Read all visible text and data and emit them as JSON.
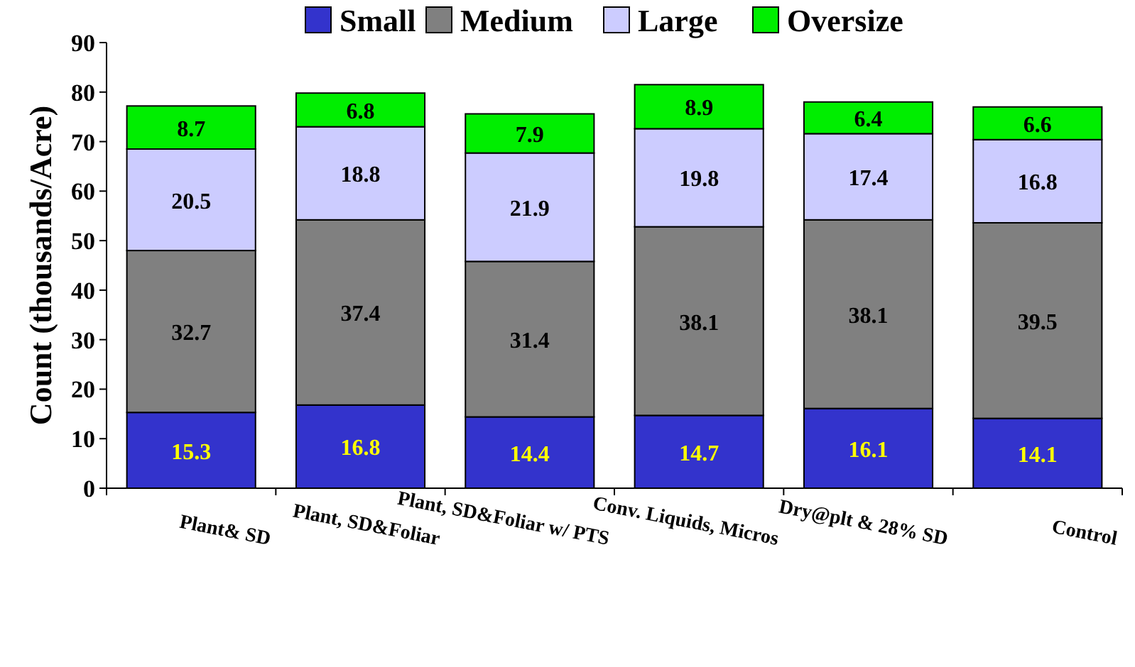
{
  "chart_data": {
    "type": "bar",
    "stacked": true,
    "ylabel": "Count (thousands/Acre)",
    "categories": [
      "Plant& SD",
      "Plant, SD&Foliar",
      "Plant, SD&Foliar w/ PTS",
      "Conv. Liquids, Micros",
      "Dry@plt & 28% SD",
      "Control"
    ],
    "series": [
      {
        "name": "Small",
        "color": "#3333cc",
        "values": [
          15.3,
          16.8,
          14.4,
          14.7,
          16.1,
          14.1
        ]
      },
      {
        "name": "Medium",
        "color": "#808080",
        "values": [
          32.7,
          37.4,
          31.4,
          38.1,
          38.1,
          39.5
        ]
      },
      {
        "name": "Large",
        "color": "#ccccff",
        "values": [
          20.5,
          18.8,
          21.9,
          19.8,
          17.4,
          16.8
        ]
      },
      {
        "name": "Oversize",
        "color": "#00ee00",
        "values": [
          8.7,
          6.8,
          7.9,
          8.9,
          6.4,
          6.6
        ]
      }
    ],
    "ylim": [
      0,
      90
    ],
    "yticks": [
      0,
      10,
      20,
      30,
      40,
      50,
      60,
      70,
      80,
      90
    ],
    "grid": false,
    "legend": "top",
    "data_labels": true
  }
}
